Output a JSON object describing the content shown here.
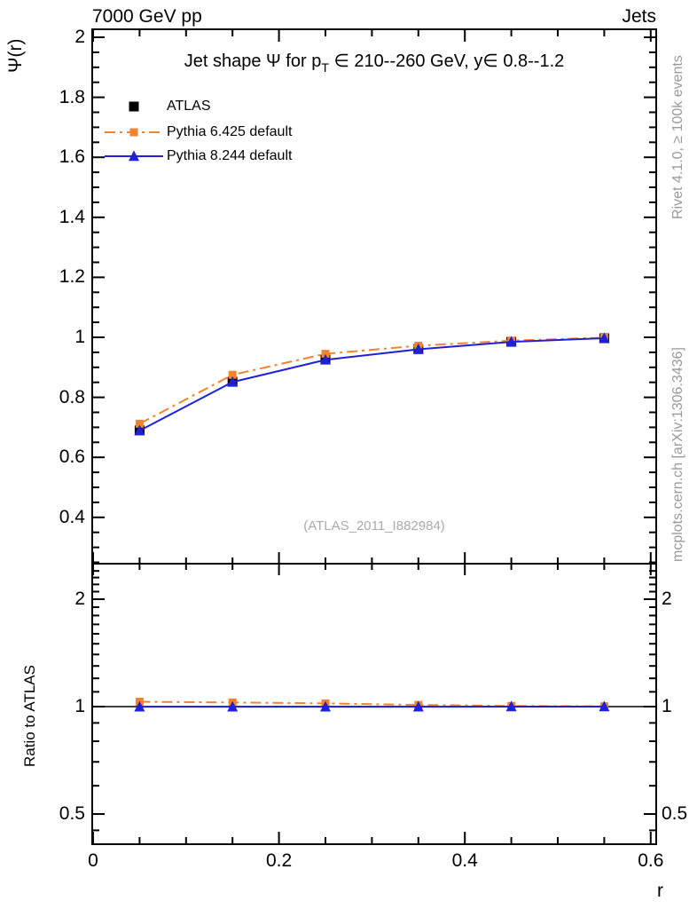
{
  "texts": {
    "header_left": "7000 GeV pp",
    "header_right": "Jets",
    "title_pre": "Jet shape Ψ for p",
    "title_sub": "T",
    "title_post": " ∈ 210--260 GeV, y∈ 0.8--1.2",
    "ylabel_main": "Ψ(r)",
    "ylabel_ratio": "Ratio to ATLAS",
    "xlabel": "r",
    "watermark": "(ATLAS_2011_I882984)",
    "rivet_note": "Rivet 4.1.0, ≥ 100k events",
    "mcplots_note": "mcplots.cern.ch [arXiv:1306.3436]"
  },
  "colors": {
    "data": "#000000",
    "pythia6": "#f5822d",
    "pythia8": "#2020d8",
    "gray_note": "#999999",
    "watermark": "#aaaaaa",
    "frame": "#000000"
  },
  "chart_data": {
    "type": "line",
    "title": "Jet shape Ψ for p_T ∈ 210--260 GeV, y∈ 0.8--1.2",
    "xlabel": "r",
    "ylabel": "Ψ(r)",
    "ratio_ylabel": "Ratio to ATLAS",
    "grid": false,
    "legend_position": "top-left",
    "x": [
      0.05,
      0.15,
      0.25,
      0.35,
      0.45,
      0.55
    ],
    "xlim": [
      -0.003,
      0.606
    ],
    "xticks": {
      "values": [
        0,
        0.2,
        0.4,
        0.6
      ],
      "labels": [
        "0",
        "0.2",
        "0.4",
        "0.6"
      ],
      "minor_step": 0.05
    },
    "main_panel": {
      "ylim": [
        0.245,
        2.027
      ],
      "yticks": {
        "values": [
          2,
          1.8,
          1.6,
          1.4,
          1.2,
          1,
          0.8,
          0.6,
          0.4
        ],
        "labels": [
          "2",
          "1.8",
          "1.6",
          "1.4",
          "1.2",
          "1",
          "0.8",
          "0.6",
          "0.4"
        ],
        "minor_step": 0.05
      }
    },
    "ratio_panel": {
      "yscale": "log",
      "ylim": [
        0.41,
        2.52
      ],
      "reference_value": 1,
      "yticks": {
        "values": [
          2,
          1,
          0.5
        ],
        "labels": [
          "2",
          "1",
          "0.5"
        ],
        "minors": [
          0.45,
          0.6,
          0.7,
          0.8,
          0.9,
          1.1,
          1.2,
          1.3,
          1.4,
          1.5,
          1.6,
          1.7,
          1.8,
          1.9,
          2.1,
          2.2,
          2.3,
          2.4
        ]
      }
    },
    "series": [
      {
        "name": "ATLAS",
        "color": "#000000",
        "marker": "square",
        "marker_size": 11,
        "line": "none",
        "is_reference": true,
        "values": [
          0.69,
          0.852,
          0.926,
          0.961,
          0.985,
          0.997
        ],
        "errors": [
          0.015,
          0.01,
          0.007,
          0.005,
          0.004,
          0.003
        ]
      },
      {
        "name": "Pythia 6.425 default",
        "color": "#f5822d",
        "marker": "square",
        "marker_size": 9,
        "line": "dashdot",
        "values": [
          0.712,
          0.875,
          0.945,
          0.972,
          0.989,
          0.999
        ],
        "ratio": [
          1.032,
          1.027,
          1.021,
          1.011,
          1.004,
          1.002
        ]
      },
      {
        "name": "Pythia 8.244 default",
        "color": "#2020d8",
        "marker": "triangle",
        "marker_size": 12,
        "line": "solid",
        "values": [
          0.689,
          0.851,
          0.925,
          0.96,
          0.985,
          0.997
        ],
        "ratio": [
          0.999,
          0.999,
          0.999,
          0.999,
          1.0,
          1.0
        ]
      }
    ]
  }
}
